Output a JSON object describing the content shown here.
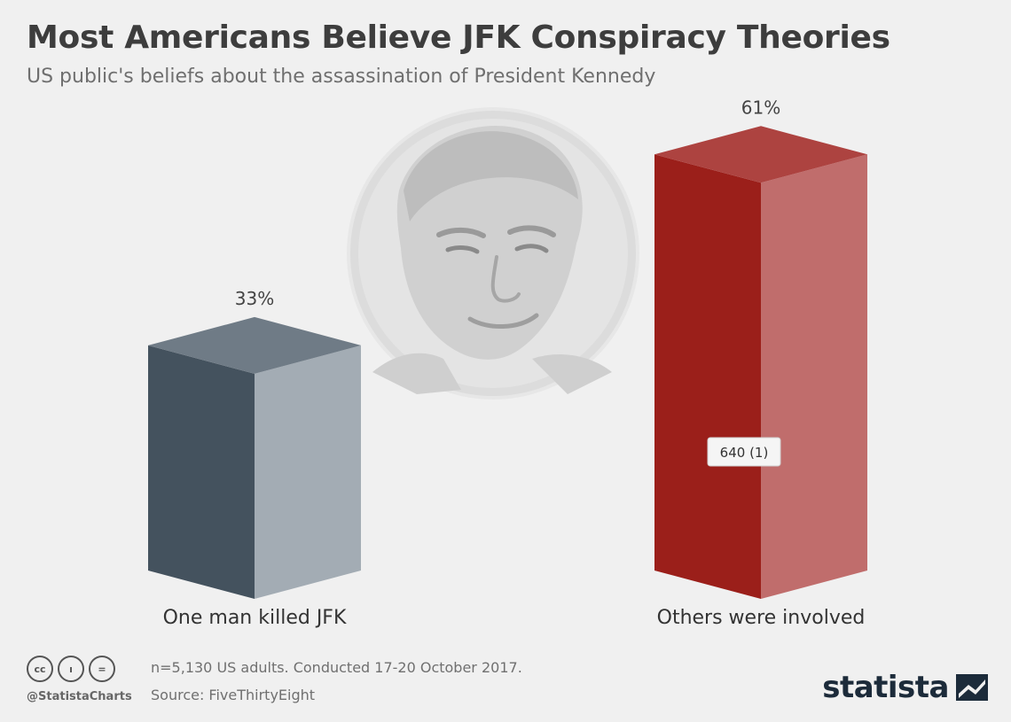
{
  "header": {
    "title": "Most Americans Believe JFK Conspiracy Theories",
    "subtitle": "US public's beliefs about the assassination of President Kennedy"
  },
  "chart_data": {
    "type": "bar",
    "categories": [
      "One man killed JFK",
      "Others were involved"
    ],
    "values": [
      33,
      61
    ],
    "value_labels": [
      "33%",
      "61%"
    ],
    "unit": "%",
    "ylim": [
      0,
      70
    ],
    "grid": false,
    "bar_colors": {
      "front": [
        "#44525e",
        "#9b1f1a"
      ],
      "side": [
        "#a3acb4",
        "#c06d6c"
      ],
      "top": [
        "#6f7b86",
        "#ad4340"
      ]
    },
    "tooltip": "640 (1)",
    "background_image": "jfk-portrait-icon"
  },
  "footer": {
    "license_icons": [
      "cc-icon",
      "attribution-icon",
      "no-derivatives-icon"
    ],
    "license_icon_glyphs": [
      "cc",
      "ı",
      "="
    ],
    "handle": "@StatistaCharts",
    "note": "n=5,130 US adults. Conducted 17-20 October 2017.",
    "source": "Source: FiveThirtyEight",
    "brand": "statista"
  }
}
